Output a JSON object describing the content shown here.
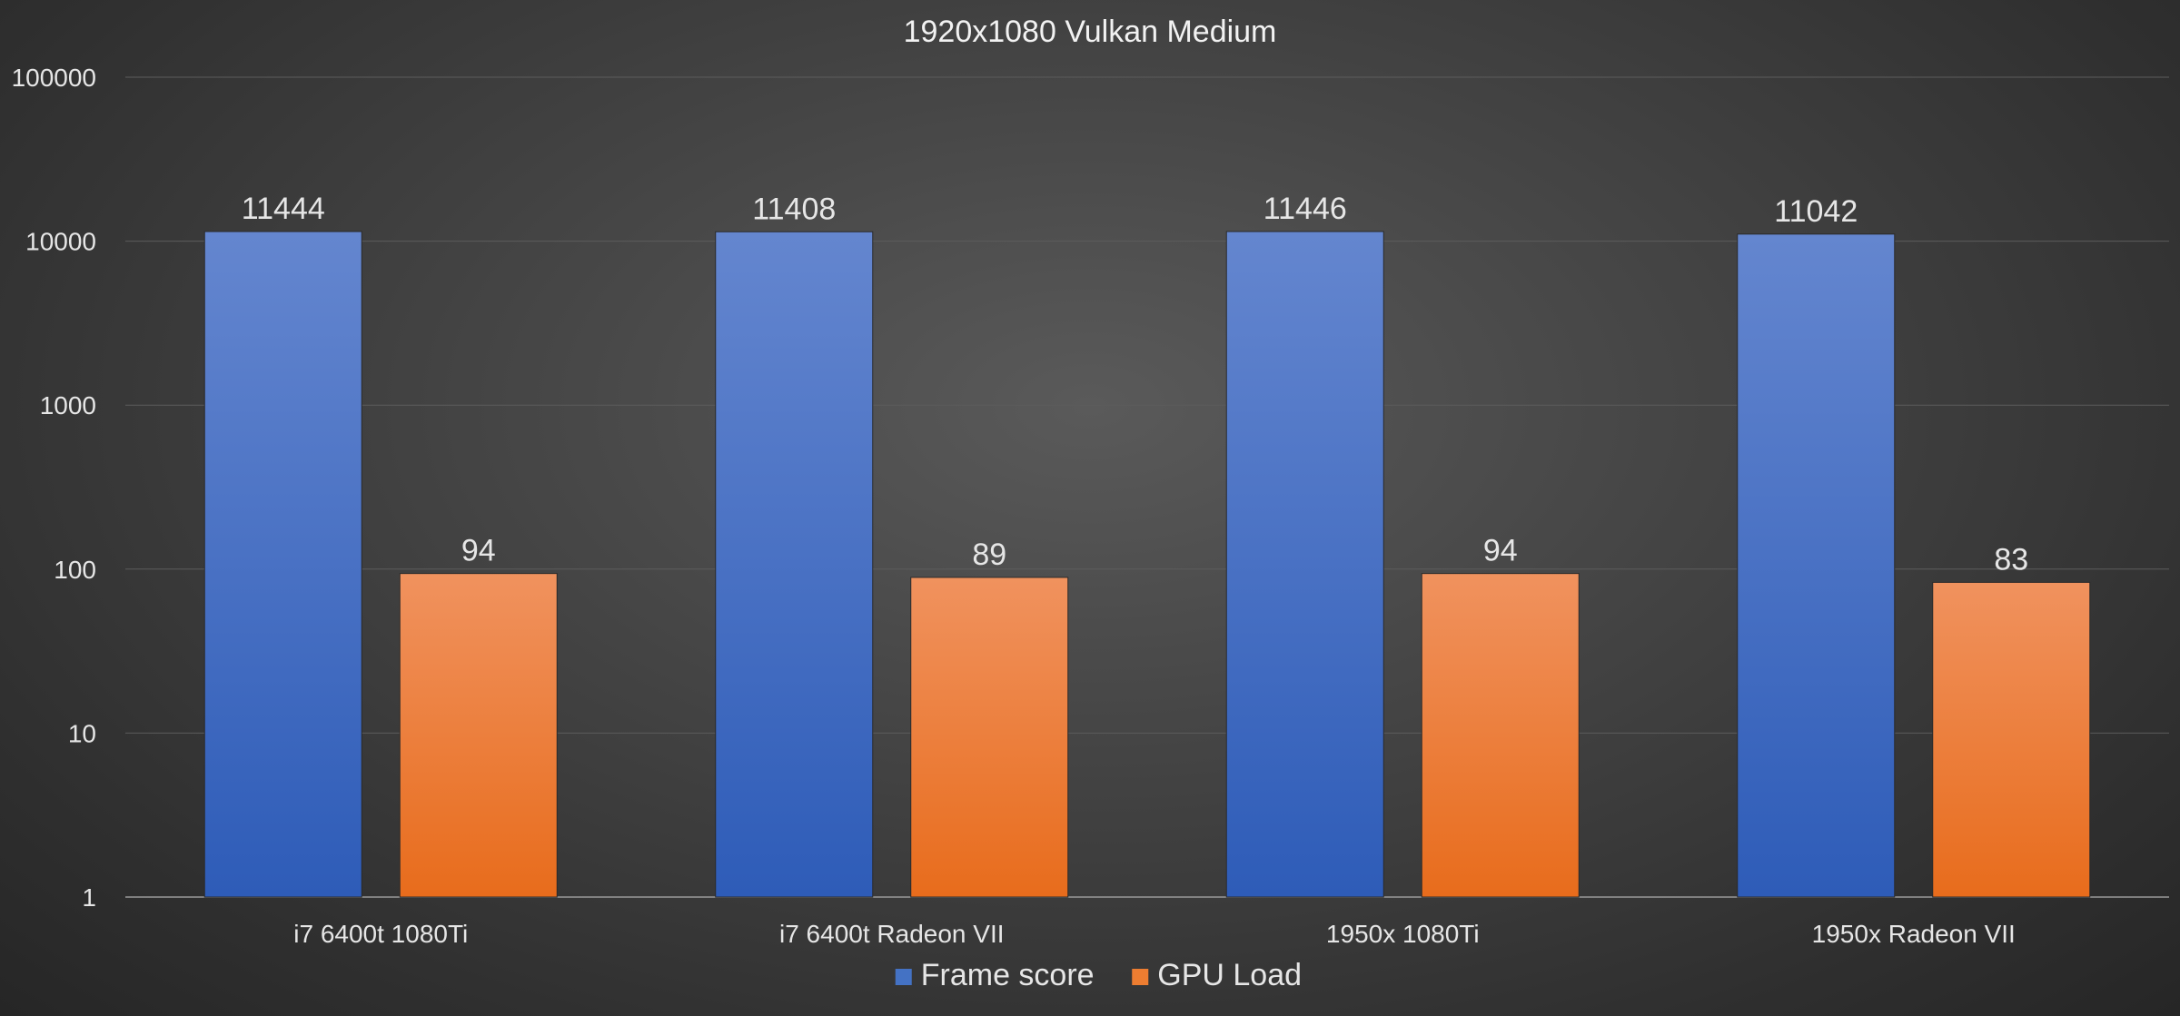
{
  "chart_data": {
    "type": "bar",
    "title": "1920x1080 Vulkan Medium",
    "xlabel": "",
    "ylabel": "",
    "y_scale": "log",
    "ylim": [
      1,
      100000
    ],
    "y_ticks": [
      "1",
      "10",
      "100",
      "1000",
      "10000",
      "100000"
    ],
    "grid": true,
    "legend_position": "bottom",
    "categories": [
      "i7 6400t 1080Ti",
      "i7 6400t Radeon VII",
      "1950x 1080Ti",
      "1950x Radeon VII"
    ],
    "series": [
      {
        "name": "Frame score",
        "values": [
          11444,
          11408,
          11446,
          11042
        ],
        "labels": [
          "11444",
          "11408",
          "11446",
          "11042"
        ],
        "color": "#4472c4"
      },
      {
        "name": "GPU Load",
        "values": [
          94,
          89,
          94,
          83
        ],
        "labels": [
          "94",
          "89",
          "94",
          "83"
        ],
        "color": "#ed7d31"
      }
    ]
  }
}
